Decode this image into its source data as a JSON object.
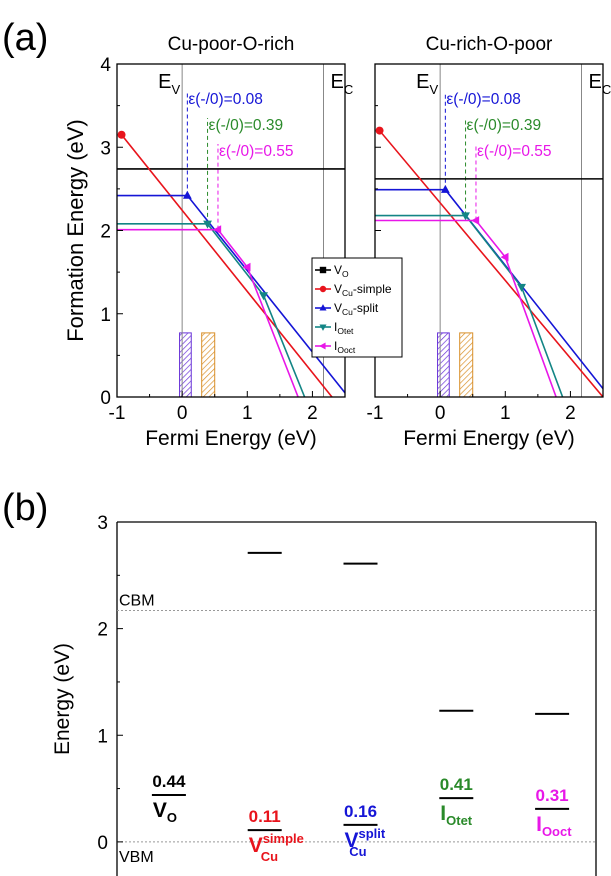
{
  "figure": {
    "panel_a_label": "(a)",
    "panel_b_label": "(b)"
  },
  "colors": {
    "vo": "#000000",
    "vcu_simple": "#e8141c",
    "vcu_split": "#1515d6",
    "iotet": "#138585",
    "iooct": "#e817e8",
    "tl_green": "#2a8a2a",
    "hatch_blue": "#6a34d8",
    "hatch_orange": "#d9902a"
  },
  "chart_data": [
    {
      "type": "line",
      "title": "Cu-poor-O-rich",
      "ylabel": "Formation Energy (eV)",
      "xlabel": "Fermi Energy (eV)",
      "xlim": [
        -1,
        2.5
      ],
      "ylim": [
        0,
        4
      ],
      "xticks": [
        "-1",
        "0",
        "1",
        "2"
      ],
      "yticks": [
        "0",
        "1",
        "2",
        "3",
        "4"
      ],
      "ev_label": "E",
      "ev_sub": "V",
      "ec_label": "E",
      "ec_sub": "C",
      "ev": 0,
      "ec": 2.17,
      "series": [
        {
          "key": "vo",
          "points": [
            [
              -1,
              2.74
            ],
            [
              2.5,
              2.74
            ]
          ],
          "marker": "square",
          "markers": []
        },
        {
          "key": "vcu_simple",
          "points": [
            [
              -0.93,
              3.15
            ],
            [
              2.3,
              0
            ]
          ],
          "marker": "circle",
          "markers": [
            [
              -0.93,
              3.15
            ]
          ]
        },
        {
          "key": "vcu_split",
          "points": [
            [
              -1,
              2.42
            ],
            [
              0.08,
              2.42
            ],
            [
              2.5,
              0.05
            ]
          ],
          "marker": "triangle-up",
          "markers": [
            [
              0.08,
              2.42
            ]
          ]
        },
        {
          "key": "iotet",
          "points": [
            [
              -1,
              2.08
            ],
            [
              0.39,
              2.08
            ],
            [
              1.25,
              1.22
            ],
            [
              1.88,
              0
            ]
          ],
          "marker": "triangle-down",
          "markers": [
            [
              0.39,
              2.08
            ],
            [
              1.25,
              1.22
            ]
          ]
        },
        {
          "key": "iooct",
          "points": [
            [
              -1,
              2.01
            ],
            [
              0.55,
              2.01
            ],
            [
              1.0,
              1.56
            ],
            [
              1.78,
              0
            ]
          ],
          "marker": "triangle-left",
          "markers": [
            [
              0.55,
              2.01
            ],
            [
              1.0,
              1.56
            ]
          ]
        }
      ],
      "transition_levels": [
        {
          "key": "vcu_split",
          "x": 0.08,
          "label": "ε(-/0)=0.08",
          "color": "#1515d6"
        },
        {
          "key": "iotet",
          "x": 0.39,
          "label": "ε(-/0)=0.39",
          "color": "#2a8a2a"
        },
        {
          "key": "iooct",
          "x": 0.55,
          "label": "ε(-/0)=0.55",
          "color": "#e817e8"
        }
      ],
      "hatched_boxes": [
        {
          "x": [
            -0.04,
            0.14
          ],
          "ylim": [
            0,
            0.77
          ],
          "color": "#6a34d8"
        },
        {
          "x": [
            0.3,
            0.5
          ],
          "ylim": [
            0,
            0.77
          ],
          "color": "#d9902a"
        }
      ]
    },
    {
      "type": "line",
      "title": "Cu-rich-O-poor",
      "ylabel": "",
      "xlabel": "Fermi Energy (eV)",
      "xlim": [
        -1,
        2.5
      ],
      "ylim": [
        0,
        4
      ],
      "xticks": [
        "-1",
        "0",
        "1",
        "2"
      ],
      "yticks": [
        "0",
        "1",
        "2",
        "3",
        "4"
      ],
      "ev_label": "E",
      "ev_sub": "V",
      "ec_label": "E",
      "ec_sub": "C",
      "ev": 0,
      "ec": 2.17,
      "series": [
        {
          "key": "vo",
          "points": [
            [
              -1,
              2.62
            ],
            [
              2.5,
              2.62
            ]
          ],
          "marker": "square",
          "markers": []
        },
        {
          "key": "vcu_simple",
          "points": [
            [
              -0.93,
              3.2
            ],
            [
              2.5,
              0
            ]
          ],
          "marker": "circle",
          "markers": [
            [
              -0.93,
              3.2
            ]
          ]
        },
        {
          "key": "vcu_split",
          "points": [
            [
              -1,
              2.49
            ],
            [
              0.08,
              2.49
            ],
            [
              2.5,
              0.1
            ]
          ],
          "marker": "triangle-up",
          "markers": [
            [
              0.08,
              2.49
            ]
          ]
        },
        {
          "key": "iotet",
          "points": [
            [
              -1,
              2.18
            ],
            [
              0.39,
              2.18
            ],
            [
              1.25,
              1.32
            ],
            [
              1.88,
              0
            ]
          ],
          "marker": "triangle-down",
          "markers": [
            [
              0.39,
              2.18
            ],
            [
              1.25,
              1.32
            ]
          ]
        },
        {
          "key": "iooct",
          "points": [
            [
              -1,
              2.12
            ],
            [
              0.55,
              2.12
            ],
            [
              1.0,
              1.68
            ],
            [
              1.78,
              0
            ]
          ],
          "marker": "triangle-left",
          "markers": [
            [
              0.55,
              2.12
            ],
            [
              1.0,
              1.68
            ]
          ]
        }
      ],
      "transition_levels": [
        {
          "key": "vcu_split",
          "x": 0.08,
          "label": "ε(-/0)=0.08",
          "color": "#1515d6"
        },
        {
          "key": "iotet",
          "x": 0.39,
          "label": "ε(-/0)=0.39",
          "color": "#2a8a2a"
        },
        {
          "key": "iooct",
          "x": 0.55,
          "label": "ε(-/0)=0.55",
          "color": "#e817e8"
        }
      ],
      "hatched_boxes": [
        {
          "x": [
            -0.04,
            0.14
          ],
          "ylim": [
            0,
            0.77
          ],
          "color": "#6a34d8"
        },
        {
          "x": [
            0.3,
            0.5
          ],
          "ylim": [
            0,
            0.77
          ],
          "color": "#d9902a"
        }
      ]
    },
    {
      "type": "bar",
      "ylabel": "Energy (eV)",
      "ylim": [
        -0.32,
        3
      ],
      "yticks": [
        "0",
        "1",
        "2",
        "3"
      ],
      "cbm": 2.17,
      "cbm_label": "CBM",
      "vbm_label": "VBM",
      "defects": [
        {
          "key": "vo",
          "label": "V",
          "sub": "O",
          "sup": "",
          "value": "0.44",
          "level_low": 0.44,
          "level_high": null,
          "color": "#000000"
        },
        {
          "key": "vcu_simple",
          "label": "V",
          "sub": "Cu",
          "sup": "simple",
          "value": "0.11",
          "level_low": 0.11,
          "level_high": 2.71,
          "color": "#e8141c"
        },
        {
          "key": "vcu_split",
          "label": "V",
          "sub": "Cu",
          "sup": "split",
          "value": "0.16",
          "level_low": 0.16,
          "level_high": 2.61,
          "color": "#1515d6"
        },
        {
          "key": "iotet",
          "label": "I",
          "sub": "Otet",
          "sup": "",
          "value": "0.41",
          "level_low": 0.41,
          "level_high": 1.23,
          "color": "#2a8a2a"
        },
        {
          "key": "iooct",
          "label": "I",
          "sub": "Ooct",
          "sup": "",
          "value": "0.31",
          "level_low": 0.31,
          "level_high": 1.2,
          "color": "#e817e8"
        }
      ]
    }
  ],
  "legend": {
    "placement": "right",
    "entries": [
      {
        "key": "vo",
        "marker": "square",
        "label": "V",
        "sub": "O",
        "suffix": ""
      },
      {
        "key": "vcu_simple",
        "marker": "circle",
        "label": "V",
        "sub": "Cu",
        "suffix": "-simple"
      },
      {
        "key": "vcu_split",
        "marker": "triangle-up",
        "label": "V",
        "sub": "Cu",
        "suffix": "-split"
      },
      {
        "key": "iotet",
        "marker": "triangle-down",
        "label": "I",
        "sub": "Otet",
        "suffix": ""
      },
      {
        "key": "iooct",
        "marker": "triangle-left",
        "label": "I",
        "sub": "Ooct",
        "suffix": ""
      }
    ]
  }
}
